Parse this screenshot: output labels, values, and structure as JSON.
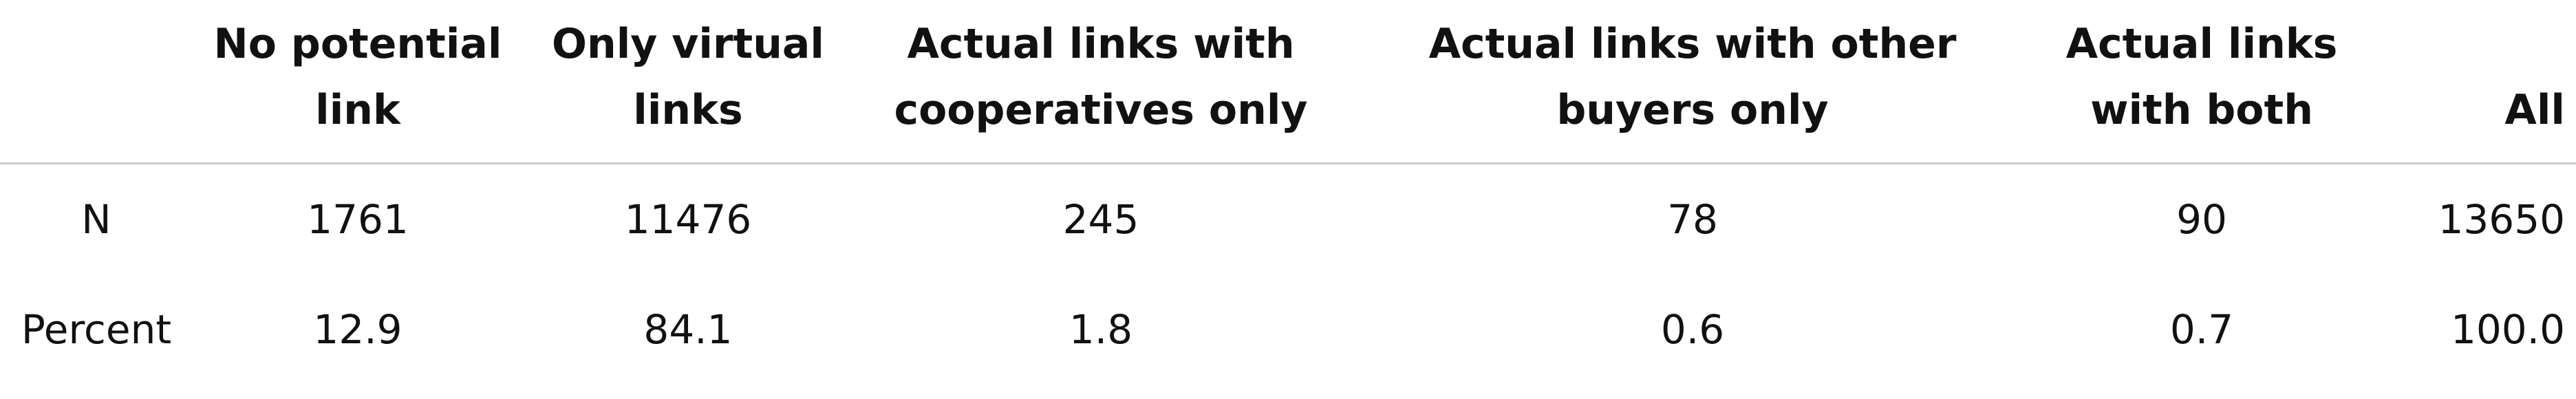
{
  "table": {
    "headers": [
      "",
      "No potential link",
      "Only virtual links",
      "Actual links with cooperatives only",
      "Actual links with other buyers only",
      "Actual links with both",
      "All"
    ],
    "rows": [
      {
        "label": "N",
        "values": [
          "1761",
          "11476",
          "245",
          "78",
          "90",
          "13650"
        ]
      },
      {
        "label": "Percent",
        "values": [
          "12.9",
          "84.1",
          "1.8",
          "0.6",
          "0.7",
          "100.0"
        ]
      }
    ]
  }
}
